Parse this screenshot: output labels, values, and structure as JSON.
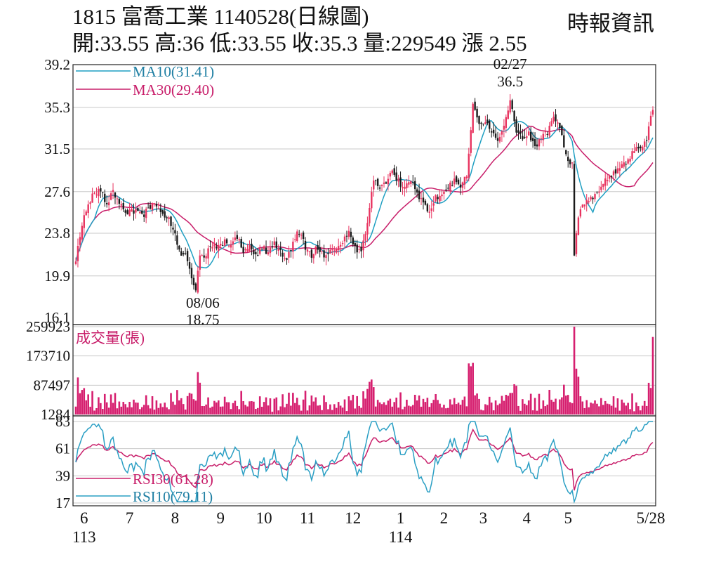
{
  "header": {
    "title": "1815  富喬工業 1140528(日線圖)",
    "ohlc": "開:33.55 高:36 低:33.55 收:35.3 量:229549 漲 2.55",
    "source": "時報資訊"
  },
  "chart_data": {
    "type": "candlestick",
    "price": {
      "yticks": [
        "39.2",
        "35.3",
        "31.5",
        "27.6",
        "23.8",
        "19.9",
        "16.1"
      ],
      "ylim": [
        16.1,
        39.2
      ],
      "ma10_label": "MA10(31.41)",
      "ma30_label": "MA30(29.40)",
      "anchors": [
        [
          0,
          21.5
        ],
        [
          3,
          24.5
        ],
        [
          6,
          26.5
        ],
        [
          9,
          27.5
        ],
        [
          12,
          27.8
        ],
        [
          15,
          26.5
        ],
        [
          18,
          27.5
        ],
        [
          21,
          26.5
        ],
        [
          24,
          25.5
        ],
        [
          27,
          25.8
        ],
        [
          30,
          26.0
        ],
        [
          33,
          25.5
        ],
        [
          36,
          26.2
        ],
        [
          39,
          26.5
        ],
        [
          42,
          25.5
        ],
        [
          45,
          25.0
        ],
        [
          48,
          23.5
        ],
        [
          51,
          22.0
        ],
        [
          54,
          21.5
        ],
        [
          57,
          19.2
        ],
        [
          58,
          18.75
        ],
        [
          60,
          21.5
        ],
        [
          63,
          22.0
        ],
        [
          66,
          22.8
        ],
        [
          69,
          22.5
        ],
        [
          72,
          23.0
        ],
        [
          75,
          22.5
        ],
        [
          78,
          23.5
        ],
        [
          81,
          22.0
        ],
        [
          84,
          22.5
        ],
        [
          87,
          21.8
        ],
        [
          90,
          22.5
        ],
        [
          93,
          22.0
        ],
        [
          96,
          22.8
        ],
        [
          99,
          22.0
        ],
        [
          102,
          21.5
        ],
        [
          105,
          23.0
        ],
        [
          108,
          24.0
        ],
        [
          111,
          22.5
        ],
        [
          114,
          21.8
        ],
        [
          117,
          22.5
        ],
        [
          120,
          21.8
        ],
        [
          123,
          22.0
        ],
        [
          126,
          22.5
        ],
        [
          129,
          23.0
        ],
        [
          132,
          23.8
        ],
        [
          135,
          22.5
        ],
        [
          138,
          22.0
        ],
        [
          141,
          25.0
        ],
        [
          144,
          28.5
        ],
        [
          147,
          28.0
        ],
        [
          150,
          28.5
        ],
        [
          153,
          29.5
        ],
        [
          156,
          28.5
        ],
        [
          159,
          28.0
        ],
        [
          162,
          28.5
        ],
        [
          165,
          27.5
        ],
        [
          168,
          26.5
        ],
        [
          171,
          25.8
        ],
        [
          174,
          27.0
        ],
        [
          177,
          27.5
        ],
        [
          180,
          28.0
        ],
        [
          183,
          28.5
        ],
        [
          186,
          28.0
        ],
        [
          189,
          29.0
        ],
        [
          192,
          35.5
        ],
        [
          195,
          33.5
        ],
        [
          198,
          34.0
        ],
        [
          201,
          33.0
        ],
        [
          204,
          32.5
        ],
        [
          207,
          33.5
        ],
        [
          210,
          35.8
        ],
        [
          213,
          33.0
        ],
        [
          216,
          32.5
        ],
        [
          219,
          33.0
        ],
        [
          222,
          31.5
        ],
        [
          225,
          32.5
        ],
        [
          228,
          33.0
        ],
        [
          231,
          34.5
        ],
        [
          234,
          33.5
        ],
        [
          237,
          31.0
        ],
        [
          240,
          30.0
        ],
        [
          241,
          22.0
        ],
        [
          243,
          25.5
        ],
        [
          246,
          26.5
        ],
        [
          249,
          27.0
        ],
        [
          252,
          27.5
        ],
        [
          255,
          28.5
        ],
        [
          258,
          29.0
        ],
        [
          261,
          29.5
        ],
        [
          264,
          30.0
        ],
        [
          267,
          30.5
        ],
        [
          270,
          31.5
        ],
        [
          273,
          31.5
        ],
        [
          276,
          32.5
        ],
        [
          279,
          35.3
        ]
      ],
      "annotations": [
        {
          "date": "02/27",
          "value": "36.5",
          "index": 210,
          "price": 36.5
        },
        {
          "date": "08/06",
          "value": "18.75",
          "index": 58,
          "price": 18.75
        }
      ]
    },
    "volume": {
      "label": "成交量(張)",
      "yticks": [
        "259923",
        "173710",
        "87497",
        "1284"
      ],
      "ylim": [
        1284,
        259923
      ],
      "last": 229549
    },
    "rsi": {
      "yticks": [
        "83",
        "61",
        "39",
        "17"
      ],
      "ylim": [
        17,
        83
      ],
      "rsi30_label": "RSI30(61.28)",
      "rsi10_label": "RSI10(79.11)"
    },
    "xticks": [
      {
        "label": "6",
        "sub": "113",
        "index": 4
      },
      {
        "label": "7",
        "index": 26
      },
      {
        "label": "8",
        "index": 48
      },
      {
        "label": "9",
        "index": 70
      },
      {
        "label": "10",
        "index": 91
      },
      {
        "label": "11",
        "index": 112
      },
      {
        "label": "12",
        "index": 134
      },
      {
        "label": "1",
        "sub": "114",
        "index": 157
      },
      {
        "label": "2",
        "index": 178
      },
      {
        "label": "3",
        "index": 197
      },
      {
        "label": "4",
        "index": 218
      },
      {
        "label": "5",
        "index": 238
      },
      {
        "label": "5/28",
        "index": 278
      }
    ],
    "count": 280,
    "colors": {
      "up": "#e8335f",
      "down": "#1a1a1a",
      "ma10": "#1f9fc2",
      "ma30": "#c81e6a",
      "volume": "#d61f6f",
      "rsi10": "#2a9fc4",
      "rsi30": "#c81e6a"
    }
  }
}
